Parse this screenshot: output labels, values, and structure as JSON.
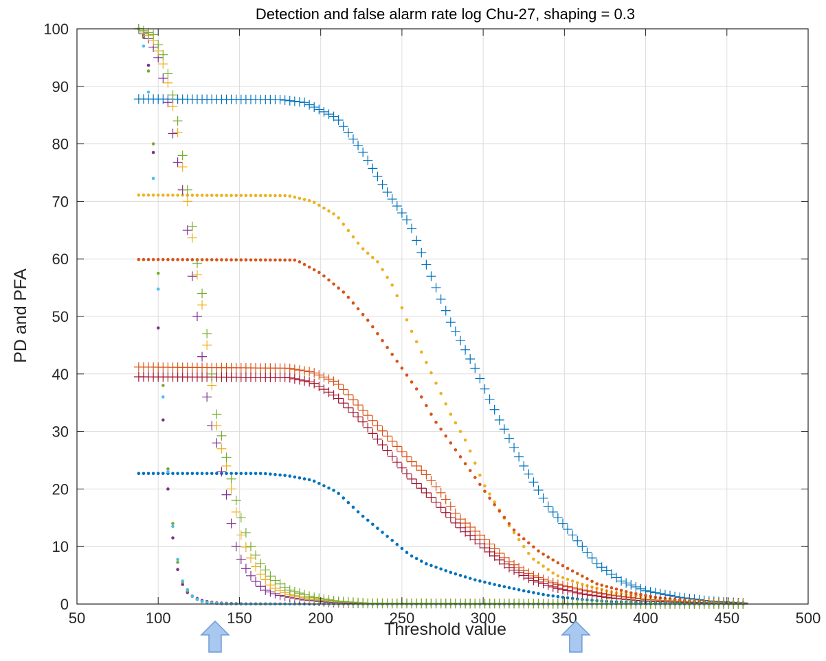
{
  "chart_data": {
    "type": "scatter",
    "title": "Detection and false alarm rate log Chu-27, shaping = 0.3",
    "xlabel": "Threshold value",
    "ylabel": "PD and PFA",
    "xlim": [
      50,
      500
    ],
    "ylim": [
      0,
      100
    ],
    "xticks": [
      50,
      100,
      150,
      200,
      250,
      300,
      350,
      400,
      450,
      500
    ],
    "yticks": [
      0,
      10,
      20,
      30,
      40,
      50,
      60,
      70,
      80,
      90,
      100
    ],
    "grid": true,
    "x_step": 3,
    "x_range": [
      88,
      460
    ],
    "annotations": [
      {
        "type": "up-arrow",
        "x": 135
      },
      {
        "type": "up-arrow",
        "x": 357
      }
    ],
    "series": [
      {
        "marker": "plus",
        "color": "#0072BD",
        "points": [
          [
            88,
            87.8
          ],
          [
            175,
            87.7
          ],
          [
            190,
            87.2
          ],
          [
            210,
            84.5
          ],
          [
            225,
            79
          ],
          [
            240,
            72
          ],
          [
            255,
            66
          ],
          [
            265,
            59
          ],
          [
            280,
            49
          ],
          [
            295,
            41
          ],
          [
            310,
            32
          ],
          [
            325,
            24
          ],
          [
            340,
            17
          ],
          [
            355,
            12
          ],
          [
            370,
            7
          ],
          [
            385,
            4
          ],
          [
            400,
            2.3
          ],
          [
            420,
            1.2
          ],
          [
            440,
            0.5
          ],
          [
            460,
            0.2
          ]
        ]
      },
      {
        "marker": "dot",
        "color": "#EDB120",
        "points": [
          [
            88,
            71.1
          ],
          [
            180,
            71
          ],
          [
            195,
            70
          ],
          [
            210,
            67.5
          ],
          [
            225,
            62
          ],
          [
            235,
            59.5
          ],
          [
            245,
            55
          ],
          [
            255,
            48
          ],
          [
            265,
            42
          ],
          [
            280,
            33
          ],
          [
            290,
            28
          ],
          [
            300,
            21
          ],
          [
            315,
            14
          ],
          [
            330,
            8
          ],
          [
            345,
            5
          ],
          [
            360,
            3.5
          ],
          [
            380,
            2
          ],
          [
            400,
            1.2
          ],
          [
            430,
            0.4
          ],
          [
            460,
            0.1
          ]
        ]
      },
      {
        "marker": "dot",
        "color": "#D95319",
        "points": [
          [
            88,
            59.9
          ],
          [
            185,
            59.8
          ],
          [
            200,
            57.5
          ],
          [
            215,
            54
          ],
          [
            230,
            49
          ],
          [
            245,
            43
          ],
          [
            260,
            37
          ],
          [
            270,
            32
          ],
          [
            280,
            28
          ],
          [
            290,
            24
          ],
          [
            305,
            18
          ],
          [
            320,
            12.5
          ],
          [
            335,
            9
          ],
          [
            350,
            6.5
          ],
          [
            370,
            3.5
          ],
          [
            390,
            2
          ],
          [
            410,
            1
          ],
          [
            430,
            0.5
          ],
          [
            460,
            0.2
          ]
        ]
      },
      {
        "marker": "plus",
        "color": "#D95319",
        "points": [
          [
            88,
            41.2
          ],
          [
            180,
            41
          ],
          [
            195,
            40.3
          ],
          [
            210,
            38.5
          ],
          [
            225,
            34
          ],
          [
            240,
            29.5
          ],
          [
            255,
            25
          ],
          [
            265,
            22.5
          ],
          [
            275,
            19
          ],
          [
            285,
            15
          ],
          [
            300,
            11.5
          ],
          [
            315,
            7.5
          ],
          [
            330,
            5
          ],
          [
            345,
            3.5
          ],
          [
            360,
            2.5
          ],
          [
            380,
            1.5
          ],
          [
            400,
            0.8
          ],
          [
            430,
            0.3
          ],
          [
            460,
            0.1
          ]
        ]
      },
      {
        "marker": "plus",
        "color": "#A2142F",
        "points": [
          [
            88,
            39.5
          ],
          [
            180,
            39.4
          ],
          [
            195,
            38.5
          ],
          [
            210,
            36
          ],
          [
            225,
            32
          ],
          [
            240,
            27
          ],
          [
            255,
            22
          ],
          [
            270,
            18
          ],
          [
            285,
            13.5
          ],
          [
            300,
            10
          ],
          [
            315,
            6.5
          ],
          [
            330,
            4.2
          ],
          [
            345,
            2.8
          ],
          [
            360,
            1.8
          ],
          [
            380,
            1
          ],
          [
            400,
            0.5
          ],
          [
            430,
            0.2
          ],
          [
            460,
            0.05
          ]
        ]
      },
      {
        "marker": "dot",
        "color": "#0072BD",
        "points": [
          [
            88,
            22.7
          ],
          [
            165,
            22.7
          ],
          [
            180,
            22.3
          ],
          [
            195,
            21.5
          ],
          [
            210,
            19.5
          ],
          [
            225,
            15.5
          ],
          [
            240,
            12
          ],
          [
            255,
            8.5
          ],
          [
            265,
            7
          ],
          [
            280,
            5.5
          ],
          [
            295,
            4.2
          ],
          [
            310,
            3.2
          ],
          [
            325,
            2.3
          ],
          [
            340,
            1.5
          ],
          [
            360,
            0.8
          ],
          [
            380,
            0.4
          ],
          [
            410,
            0.2
          ],
          [
            460,
            0.05
          ]
        ]
      },
      {
        "marker": "dot",
        "color": "#7E2F8E",
        "points": [
          [
            88,
            100
          ],
          [
            93,
            98
          ],
          [
            96,
            85
          ],
          [
            98,
            72
          ],
          [
            100,
            48
          ],
          [
            102,
            36
          ],
          [
            104,
            28
          ],
          [
            106,
            20
          ],
          [
            108,
            14
          ],
          [
            110,
            9
          ],
          [
            112,
            6
          ],
          [
            114,
            4
          ],
          [
            116,
            2.8
          ],
          [
            118,
            2
          ],
          [
            122,
            1.2
          ],
          [
            127,
            0.6
          ],
          [
            135,
            0.2
          ],
          [
            150,
            0.05
          ],
          [
            200,
            0
          ]
        ]
      },
      {
        "marker": "dot",
        "color": "#77AC30",
        "points": [
          [
            88,
            100
          ],
          [
            92,
            98
          ],
          [
            95,
            90
          ],
          [
            97,
            80
          ],
          [
            99,
            68
          ],
          [
            101,
            47
          ],
          [
            103,
            38
          ],
          [
            105,
            27
          ],
          [
            107,
            20
          ],
          [
            109,
            14
          ],
          [
            111,
            9
          ],
          [
            113,
            5.5
          ],
          [
            116,
            3
          ],
          [
            120,
            1.5
          ],
          [
            126,
            0.5
          ],
          [
            135,
            0.1
          ],
          [
            150,
            0
          ],
          [
            200,
            0
          ]
        ]
      },
      {
        "marker": "dot",
        "color": "#4DBEEE",
        "points": [
          [
            88,
            100
          ],
          [
            91,
            97
          ],
          [
            94,
            89
          ],
          [
            96,
            80
          ],
          [
            99,
            62
          ],
          [
            101,
            47.5
          ],
          [
            103,
            36
          ],
          [
            105,
            26
          ],
          [
            107,
            20
          ],
          [
            109,
            13.5
          ],
          [
            111,
            9.5
          ],
          [
            113,
            6
          ],
          [
            115,
            4
          ],
          [
            118,
            2.5
          ],
          [
            122,
            1
          ],
          [
            128,
            0.3
          ],
          [
            140,
            0
          ],
          [
            200,
            0
          ]
        ]
      },
      {
        "marker": "plus",
        "color": "#7E2F8E",
        "points": [
          [
            88,
            100
          ],
          [
            95,
            98
          ],
          [
            100,
            95
          ],
          [
            105,
            89
          ],
          [
            110,
            80
          ],
          [
            115,
            72
          ],
          [
            118,
            65
          ],
          [
            121,
            57
          ],
          [
            124,
            50
          ],
          [
            127,
            43
          ],
          [
            130,
            36
          ],
          [
            133,
            31
          ],
          [
            136,
            28
          ],
          [
            139,
            23
          ],
          [
            142,
            19
          ],
          [
            145,
            14
          ],
          [
            148,
            10
          ],
          [
            152,
            7
          ],
          [
            158,
            4.5
          ],
          [
            165,
            2.5
          ],
          [
            175,
            1.5
          ],
          [
            190,
            0.7
          ],
          [
            205,
            0.3
          ],
          [
            220,
            0.1
          ],
          [
            460,
            0
          ]
        ]
      },
      {
        "marker": "plus",
        "color": "#EDB120",
        "points": [
          [
            88,
            100
          ],
          [
            96,
            98.5
          ],
          [
            102,
            95
          ],
          [
            107,
            89.5
          ],
          [
            112,
            82
          ],
          [
            116,
            74
          ],
          [
            120,
            66
          ],
          [
            123,
            59
          ],
          [
            127,
            52
          ],
          [
            130,
            45
          ],
          [
            133,
            38
          ],
          [
            136,
            31
          ],
          [
            139,
            27
          ],
          [
            142,
            24
          ],
          [
            145,
            20
          ],
          [
            148,
            16
          ],
          [
            151,
            12
          ],
          [
            156,
            8.5
          ],
          [
            162,
            5.5
          ],
          [
            170,
            3
          ],
          [
            180,
            1.7
          ],
          [
            195,
            0.8
          ],
          [
            210,
            0.4
          ],
          [
            230,
            0.1
          ],
          [
            460,
            0
          ]
        ]
      },
      {
        "marker": "plus",
        "color": "#77AC30",
        "points": [
          [
            88,
            100
          ],
          [
            97,
            99
          ],
          [
            103,
            95.5
          ],
          [
            108,
            90
          ],
          [
            112,
            84
          ],
          [
            116,
            76
          ],
          [
            120,
            68
          ],
          [
            123,
            61
          ],
          [
            127,
            54
          ],
          [
            130,
            47
          ],
          [
            133,
            40
          ],
          [
            136,
            33
          ],
          [
            140,
            28
          ],
          [
            144,
            23
          ],
          [
            148,
            18
          ],
          [
            152,
            14
          ],
          [
            157,
            10
          ],
          [
            163,
            7
          ],
          [
            170,
            4.5
          ],
          [
            180,
            2.5
          ],
          [
            195,
            1.2
          ],
          [
            210,
            0.5
          ],
          [
            230,
            0.15
          ],
          [
            460,
            0
          ]
        ]
      }
    ]
  }
}
